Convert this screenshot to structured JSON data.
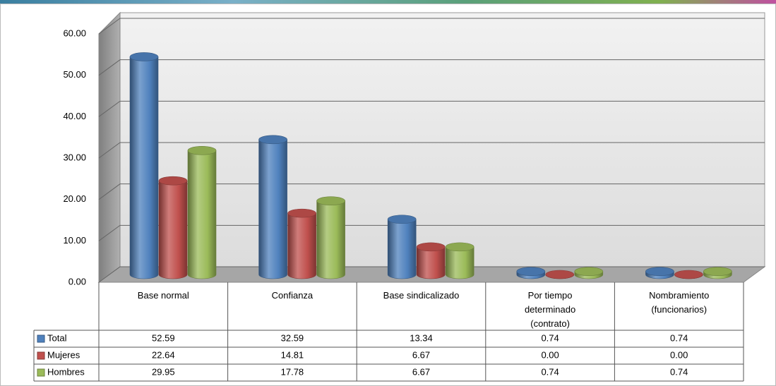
{
  "chart_data": {
    "type": "bar3d",
    "categories": [
      "Base normal",
      "Confianza",
      "Base sindicalizado",
      "Por tiempo determinado (contrato)",
      "Nombramiento (funcionarios)"
    ],
    "series": [
      {
        "name": "Total",
        "color": "#4f81bd",
        "values": [
          52.59,
          32.59,
          13.34,
          0.74,
          0.74
        ],
        "value_labels": [
          "52.59",
          "32.59",
          "13.34",
          "0.74",
          "0.74"
        ]
      },
      {
        "name": "Mujeres",
        "color": "#c0504d",
        "values": [
          22.64,
          14.81,
          6.67,
          0.0,
          0.0
        ],
        "value_labels": [
          "22.64",
          "14.81",
          "6.67",
          "0.00",
          "0.00"
        ]
      },
      {
        "name": "Hombres",
        "color": "#9bbb59",
        "values": [
          29.95,
          17.78,
          6.67,
          0.74,
          0.74
        ],
        "value_labels": [
          "29.95",
          "17.78",
          "6.67",
          "0.74",
          "0.74"
        ]
      }
    ],
    "ylim": [
      0,
      60
    ],
    "yticks": [
      {
        "value": 0,
        "label": "0.00"
      },
      {
        "value": 10,
        "label": "10.00"
      },
      {
        "value": 20,
        "label": "20.00"
      },
      {
        "value": 30,
        "label": "30.00"
      },
      {
        "value": 40,
        "label": "40.00"
      },
      {
        "value": 50,
        "label": "50.00"
      },
      {
        "value": 60,
        "label": "60.00"
      }
    ],
    "grid": true,
    "legend": "table"
  }
}
